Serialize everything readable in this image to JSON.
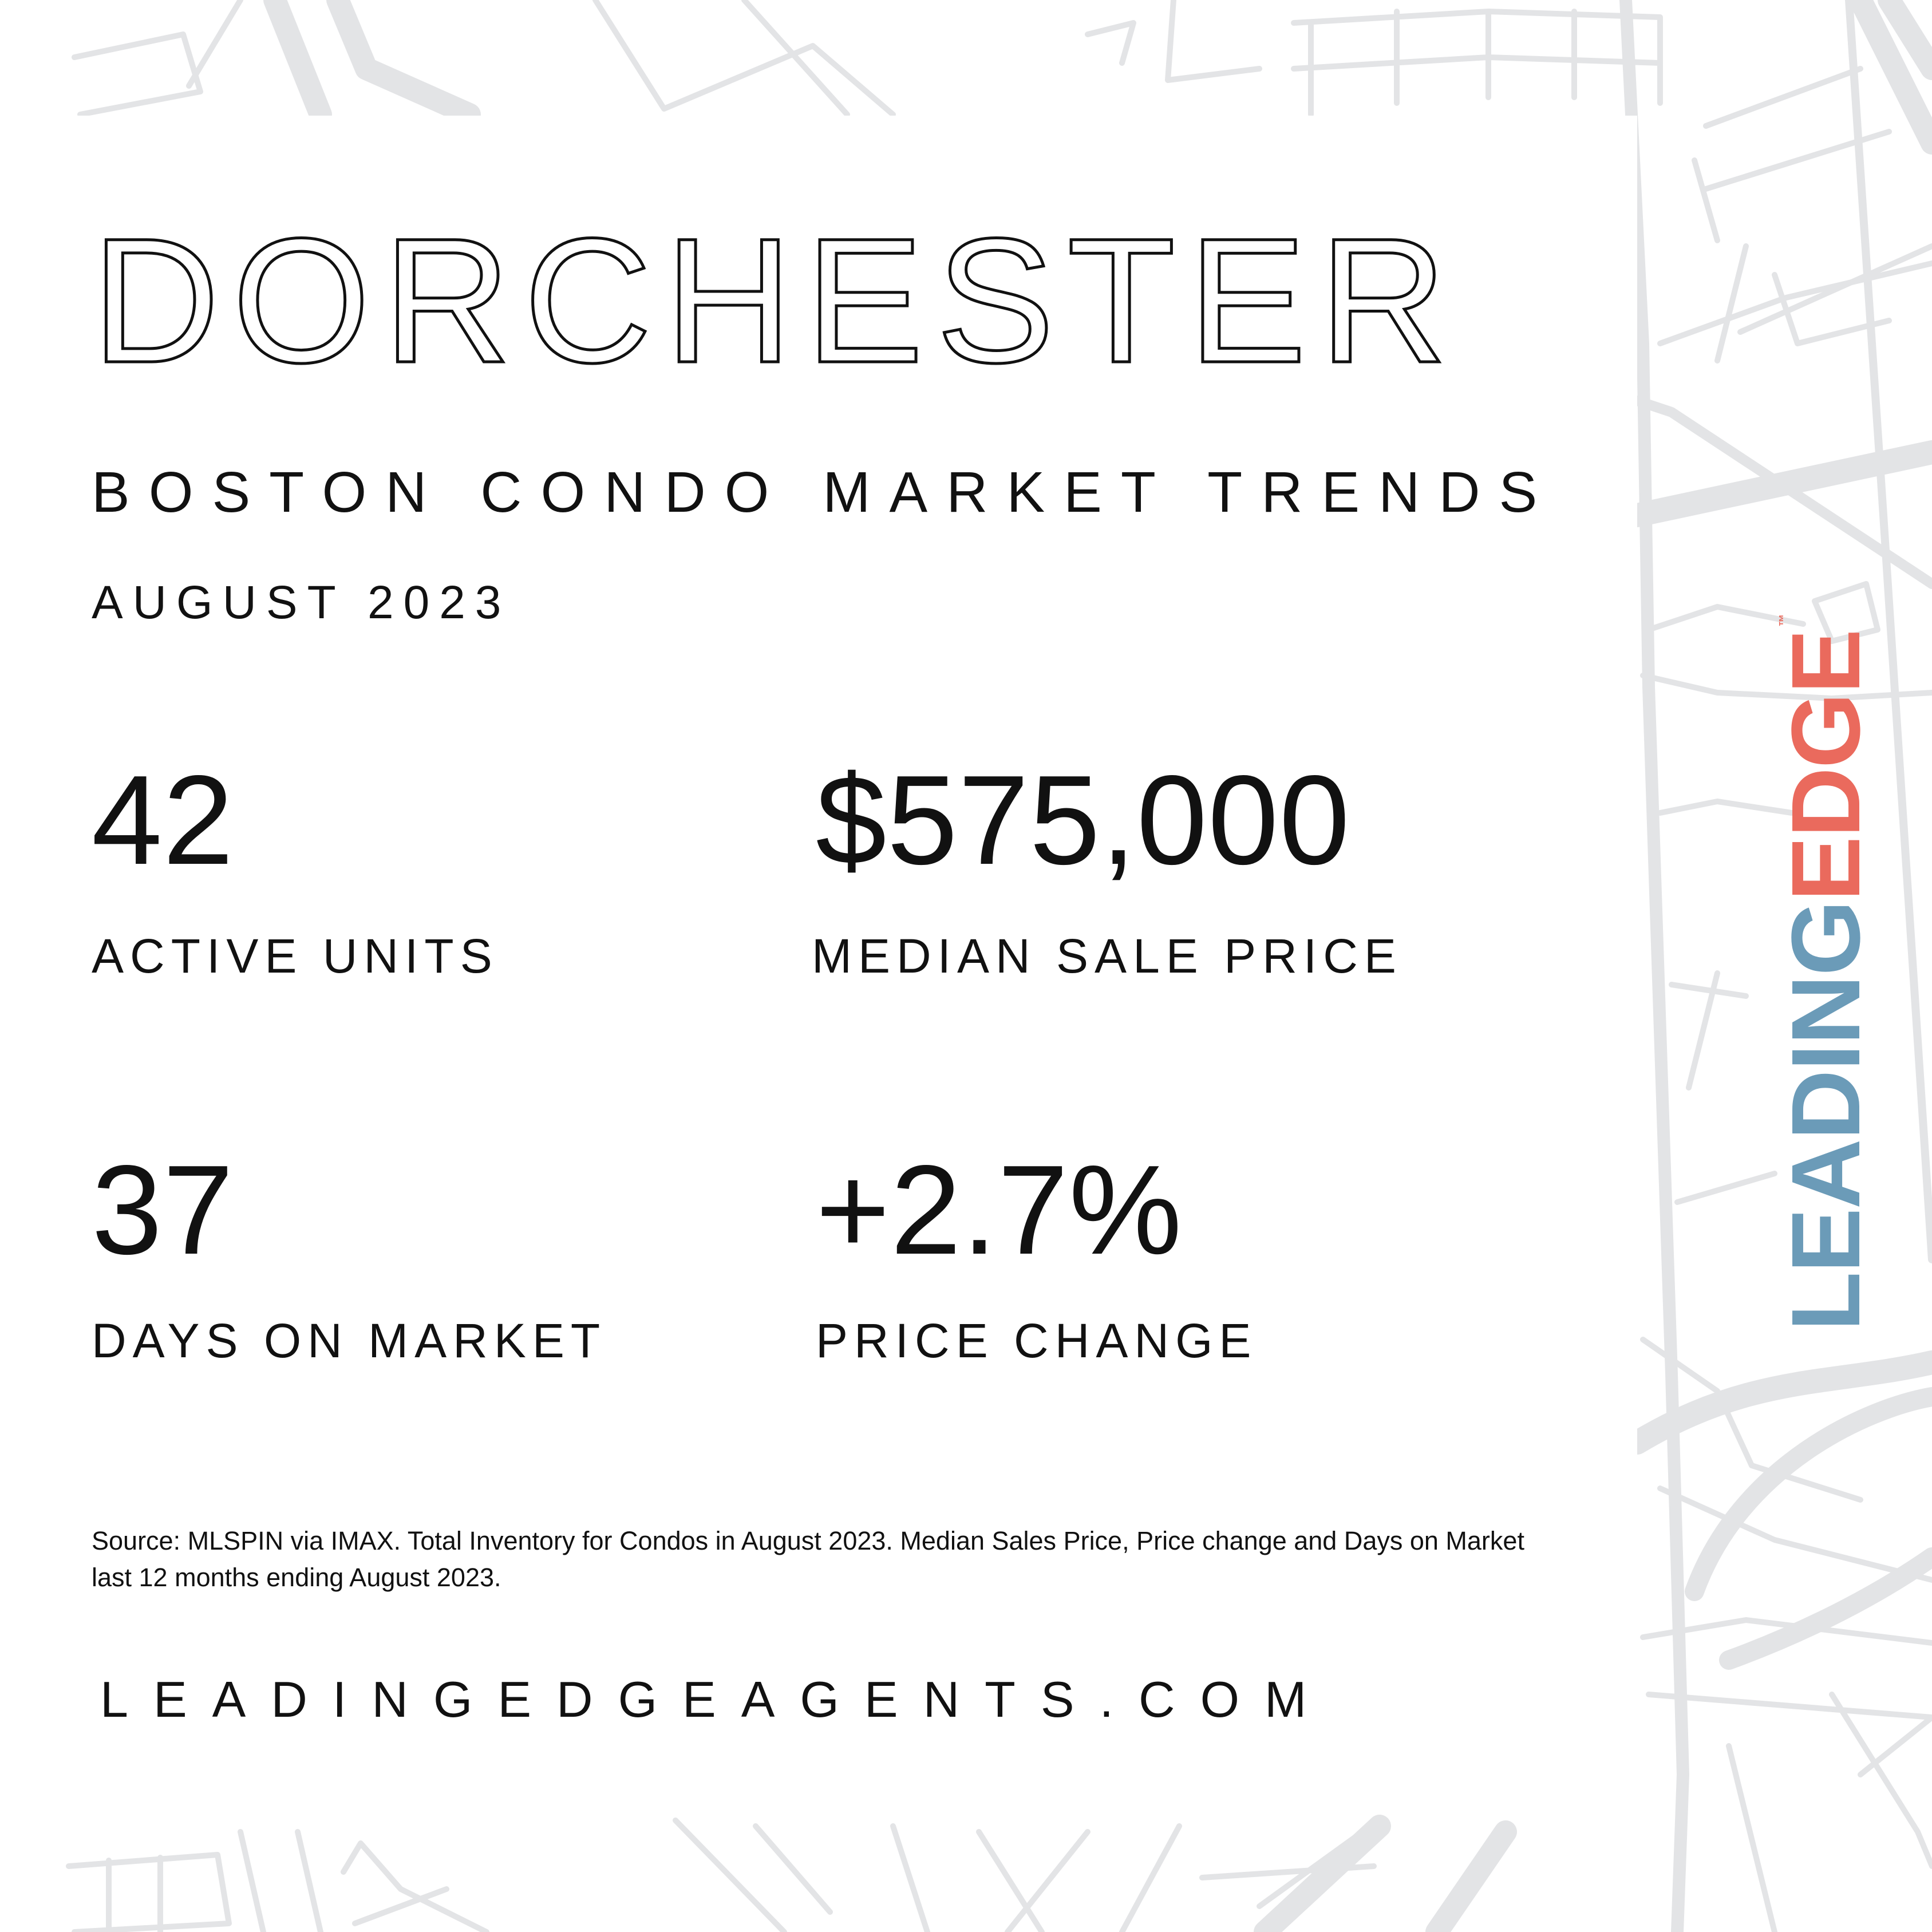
{
  "title": "DORCHESTER",
  "subtitle": "BOSTON CONDO MARKET TRENDS",
  "period": "AUGUST 2023",
  "stats": {
    "active_units": {
      "value": "42",
      "label": "ACTIVE UNITS"
    },
    "median_price": {
      "value": "$575,000",
      "label": "MEDIAN SALE PRICE"
    },
    "days_on_market": {
      "value": "37",
      "label": "DAYS ON MARKET"
    },
    "price_change": {
      "value": "+2.7%",
      "label": "PRICE CHANGE"
    }
  },
  "source_note": "Source: MLSPIN via IMAX. Total Inventory for Condos in August 2023. Median Sales Price, Price change and Days on Market last 12 months ending August 2023.",
  "website": "LEADINGEDGEAGENTS.COM",
  "brand": {
    "leading": "LEADING",
    "edge": "EDGE",
    "tm": "™",
    "colors": {
      "leading": "#6b9bb8",
      "edge": "#ea6a5d"
    }
  },
  "colors": {
    "map_lines": "#e3e4e6",
    "text": "#111111",
    "background": "#ffffff"
  }
}
